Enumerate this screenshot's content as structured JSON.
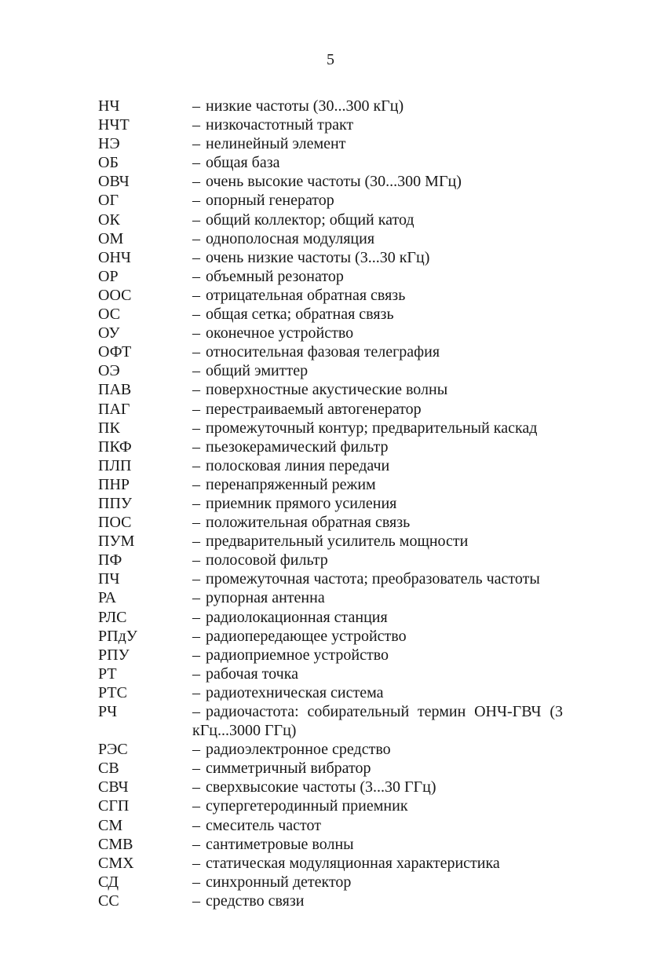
{
  "page": {
    "number": "5",
    "dash": "–",
    "entries": [
      {
        "abbr": "НЧ",
        "def": "низкие частоты (30...300 кГц)"
      },
      {
        "abbr": "НЧТ",
        "def": "низкочастотный тракт"
      },
      {
        "abbr": "НЭ",
        "def": "нелинейный элемент"
      },
      {
        "abbr": "ОБ",
        "def": "общая база"
      },
      {
        "abbr": "ОВЧ",
        "def": "очень высокие частоты (30...300 МГц)"
      },
      {
        "abbr": "ОГ",
        "def": "опорный генератор"
      },
      {
        "abbr": "ОК",
        "def": "общий коллектор; общий катод"
      },
      {
        "abbr": "ОМ",
        "def": "однополосная модуляция"
      },
      {
        "abbr": "ОНЧ",
        "def": "очень низкие частоты (3...30 кГц)"
      },
      {
        "abbr": "ОР",
        "def": "объемный резонатор"
      },
      {
        "abbr": "ООС",
        "def": "отрицательная обратная связь"
      },
      {
        "abbr": "ОС",
        "def": "общая сетка; обратная связь"
      },
      {
        "abbr": "ОУ",
        "def": "оконечное устройство"
      },
      {
        "abbr": "ОФТ",
        "def": "относительная фазовая телеграфия"
      },
      {
        "abbr": "ОЭ",
        "def": "общий эмиттер"
      },
      {
        "abbr": "ПАВ",
        "def": "поверхностные акустические волны"
      },
      {
        "abbr": "ПАГ",
        "def": "перестраиваемый автогенератор"
      },
      {
        "abbr": "ПК",
        "def": "промежуточный контур; предварительный каскад"
      },
      {
        "abbr": "ПКФ",
        "def": "пьезокерамический фильтр"
      },
      {
        "abbr": "ПЛП",
        "def": "полосковая линия передачи"
      },
      {
        "abbr": "ПНР",
        "def": "перенапряженный режим"
      },
      {
        "abbr": "ППУ",
        "def": "приемник прямого усиления"
      },
      {
        "abbr": "ПОС",
        "def": "положительная обратная связь"
      },
      {
        "abbr": "ПУМ",
        "def": "предварительный усилитель мощности"
      },
      {
        "abbr": "ПФ",
        "def": "полосовой фильтр"
      },
      {
        "abbr": "ПЧ",
        "def": "промежуточная частота; преобразователь частоты"
      },
      {
        "abbr": "РА",
        "def": "рупорная антенна"
      },
      {
        "abbr": "РЛС",
        "def": "радиолокационная станция"
      },
      {
        "abbr": "РПдУ",
        "def": "радиопередающее устройство"
      },
      {
        "abbr": "РПУ",
        "def": "радиоприемное устройство"
      },
      {
        "abbr": "РТ",
        "def": "рабочая точка"
      },
      {
        "abbr": "РТС",
        "def": "радиотехническая система"
      },
      {
        "abbr": "РЧ",
        "def": "радиочастота: собирательный термин ОНЧ-ГВЧ (3 кГц...3000 ГГц)",
        "justified": true
      },
      {
        "abbr": "РЭС",
        "def": "радиоэлектронное средство"
      },
      {
        "abbr": "СВ",
        "def": "симметричный вибратор"
      },
      {
        "abbr": "СВЧ",
        "def": "сверхвысокие частоты (3...30 ГГц)"
      },
      {
        "abbr": "СГП",
        "def": "супергетеродинный приемник"
      },
      {
        "abbr": "СМ",
        "def": "смеситель частот"
      },
      {
        "abbr": "СМВ",
        "def": "сантиметровые волны"
      },
      {
        "abbr": "СМХ",
        "def": "статическая модуляционная характеристика"
      },
      {
        "abbr": "СД",
        "def": "синхронный детектор"
      },
      {
        "abbr": "СС",
        "def": "средство связи"
      }
    ]
  }
}
